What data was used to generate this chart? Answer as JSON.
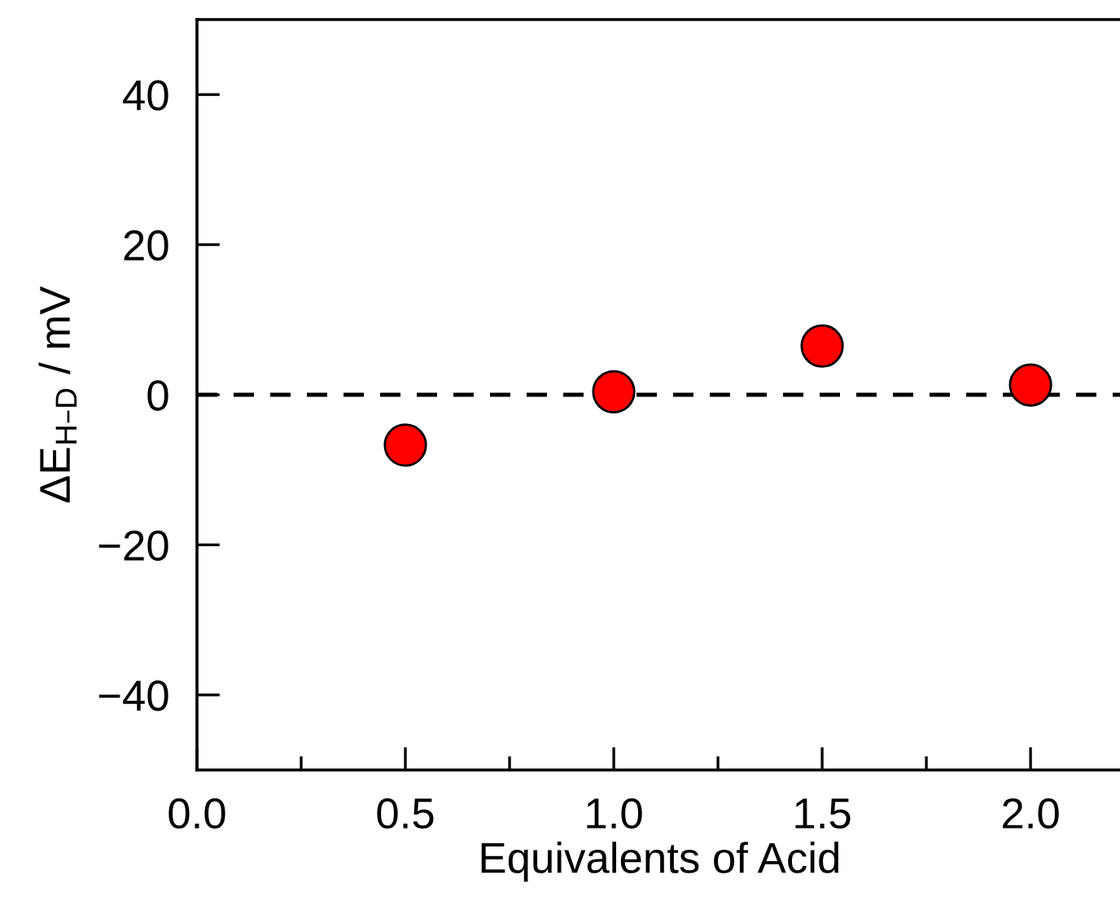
{
  "chart_data": {
    "type": "scatter",
    "xlabel": "Equivalents of Acid",
    "ylabel": "ΔE$_{H–D}$ / mV",
    "x": [
      0.5,
      1.0,
      1.5,
      2.0
    ],
    "series": [
      {
        "color": "#ff0000",
        "values": [
          -6.7,
          0.4,
          6.5,
          1.3
        ]
      }
    ],
    "marker": "circle",
    "xlim": [
      0,
      2.22
    ],
    "ylim": [
      -50,
      50
    ],
    "xticks": [
      {
        "value": 0,
        "label": "0.0"
      },
      {
        "value": 0.25,
        "label": null
      },
      0.5,
      {
        "value": 0.75,
        "label": null
      },
      {
        "value": 1,
        "label": "1.0"
      },
      {
        "value": 1.25,
        "label": null
      },
      1.5,
      {
        "value": 1.75,
        "label": null
      },
      {
        "value": 2,
        "label": "2.0"
      }
    ],
    "yticks": [
      -40,
      -20,
      0,
      20,
      40
    ],
    "ref_lines": [
      {
        "axis": "y",
        "value": 0,
        "color": "#000000",
        "line_style": "dashed"
      }
    ],
    "grid": false
  }
}
